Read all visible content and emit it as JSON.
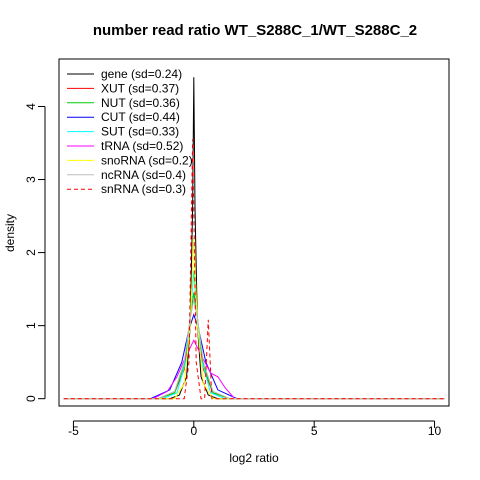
{
  "chart_data": {
    "type": "line",
    "title": "number read ratio WT_S288C_1/WT_S288C_2",
    "xlabel": "log2 ratio",
    "ylabel": "density",
    "xlim": [
      -5.6,
      10.6
    ],
    "ylim": [
      -0.1,
      4.65
    ],
    "xticks": [
      -5,
      0,
      5,
      10
    ],
    "yticks": [
      0,
      1,
      2,
      3,
      4
    ],
    "grid": false,
    "legend_position": "top-left",
    "x_range": [
      -5.4,
      10.4
    ],
    "series": [
      {
        "name": "gene (sd=0.24)",
        "color": "#000000",
        "dashed": false,
        "points": [
          [
            -1.0,
            0.0
          ],
          [
            -0.6,
            0.05
          ],
          [
            -0.3,
            0.3
          ],
          [
            -0.15,
            1.0
          ],
          [
            -0.05,
            2.6
          ],
          [
            0.0,
            4.4
          ],
          [
            0.05,
            2.6
          ],
          [
            0.15,
            1.0
          ],
          [
            0.3,
            0.3
          ],
          [
            0.6,
            0.05
          ],
          [
            1.0,
            0.0
          ]
        ]
      },
      {
        "name": "XUT (sd=0.37)",
        "color": "#ff0000",
        "dashed": false,
        "points": [
          [
            -1.5,
            0.0
          ],
          [
            -0.8,
            0.08
          ],
          [
            -0.4,
            0.4
          ],
          [
            -0.15,
            1.1
          ],
          [
            0.0,
            1.45
          ],
          [
            0.15,
            1.1
          ],
          [
            0.4,
            0.4
          ],
          [
            0.8,
            0.08
          ],
          [
            1.5,
            0.0
          ]
        ]
      },
      {
        "name": "NUT (sd=0.36)",
        "color": "#00cc00",
        "dashed": false,
        "points": [
          [
            -1.5,
            0.0
          ],
          [
            -0.8,
            0.08
          ],
          [
            -0.4,
            0.45
          ],
          [
            -0.15,
            1.1
          ],
          [
            0.0,
            1.45
          ],
          [
            0.15,
            1.1
          ],
          [
            0.4,
            0.45
          ],
          [
            0.8,
            0.08
          ],
          [
            1.5,
            0.0
          ]
        ]
      },
      {
        "name": "CUT (sd=0.44)",
        "color": "#0000ff",
        "dashed": false,
        "points": [
          [
            -1.8,
            0.0
          ],
          [
            -1.0,
            0.12
          ],
          [
            -0.5,
            0.5
          ],
          [
            -0.2,
            0.95
          ],
          [
            0.0,
            1.15
          ],
          [
            0.2,
            0.95
          ],
          [
            0.5,
            0.5
          ],
          [
            1.0,
            0.12
          ],
          [
            1.8,
            0.0
          ]
        ]
      },
      {
        "name": "SUT (sd=0.33)",
        "color": "#00ffff",
        "dashed": false,
        "points": [
          [
            -1.3,
            0.0
          ],
          [
            -0.7,
            0.08
          ],
          [
            -0.3,
            0.55
          ],
          [
            -0.1,
            1.3
          ],
          [
            0.0,
            1.75
          ],
          [
            0.1,
            1.3
          ],
          [
            0.3,
            0.55
          ],
          [
            0.7,
            0.08
          ],
          [
            1.3,
            0.0
          ]
        ]
      },
      {
        "name": "tRNA (sd=0.52)",
        "color": "#ff00ff",
        "dashed": false,
        "points": [
          [
            -1.7,
            0.0
          ],
          [
            -1.1,
            0.1
          ],
          [
            -0.7,
            0.3
          ],
          [
            -0.3,
            0.6
          ],
          [
            0.0,
            0.8
          ],
          [
            0.3,
            0.6
          ],
          [
            0.7,
            0.35
          ],
          [
            1.0,
            0.3
          ],
          [
            1.3,
            0.15
          ],
          [
            1.7,
            0.0
          ]
        ]
      },
      {
        "name": "snoRNA (sd=0.2)",
        "color": "#ffff00",
        "dashed": false,
        "points": [
          [
            -0.8,
            0.0
          ],
          [
            -0.4,
            0.2
          ],
          [
            -0.15,
            1.0
          ],
          [
            0.0,
            2.2
          ],
          [
            0.15,
            1.0
          ],
          [
            0.4,
            0.2
          ],
          [
            0.8,
            0.0
          ]
        ]
      },
      {
        "name": "ncRNA (sd=0.4)",
        "color": "#bebebe",
        "dashed": false,
        "points": [
          [
            -1.5,
            0.0
          ],
          [
            -0.8,
            0.1
          ],
          [
            -0.4,
            0.5
          ],
          [
            -0.15,
            1.1
          ],
          [
            0.0,
            1.35
          ],
          [
            0.15,
            1.1
          ],
          [
            0.4,
            0.5
          ],
          [
            0.8,
            0.1
          ],
          [
            1.5,
            0.0
          ]
        ]
      },
      {
        "name": "snRNA (sd=0.3)",
        "color": "#ff0000",
        "dashed": true,
        "points": [
          [
            -5.4,
            0.0
          ],
          [
            -0.4,
            0.0
          ],
          [
            -0.2,
            0.5
          ],
          [
            -0.05,
            3.55
          ],
          [
            0.1,
            0.5
          ],
          [
            0.3,
            0.0
          ],
          [
            0.45,
            0.0
          ],
          [
            0.6,
            1.08
          ],
          [
            0.75,
            0.0
          ],
          [
            10.4,
            0.0
          ]
        ]
      }
    ]
  }
}
